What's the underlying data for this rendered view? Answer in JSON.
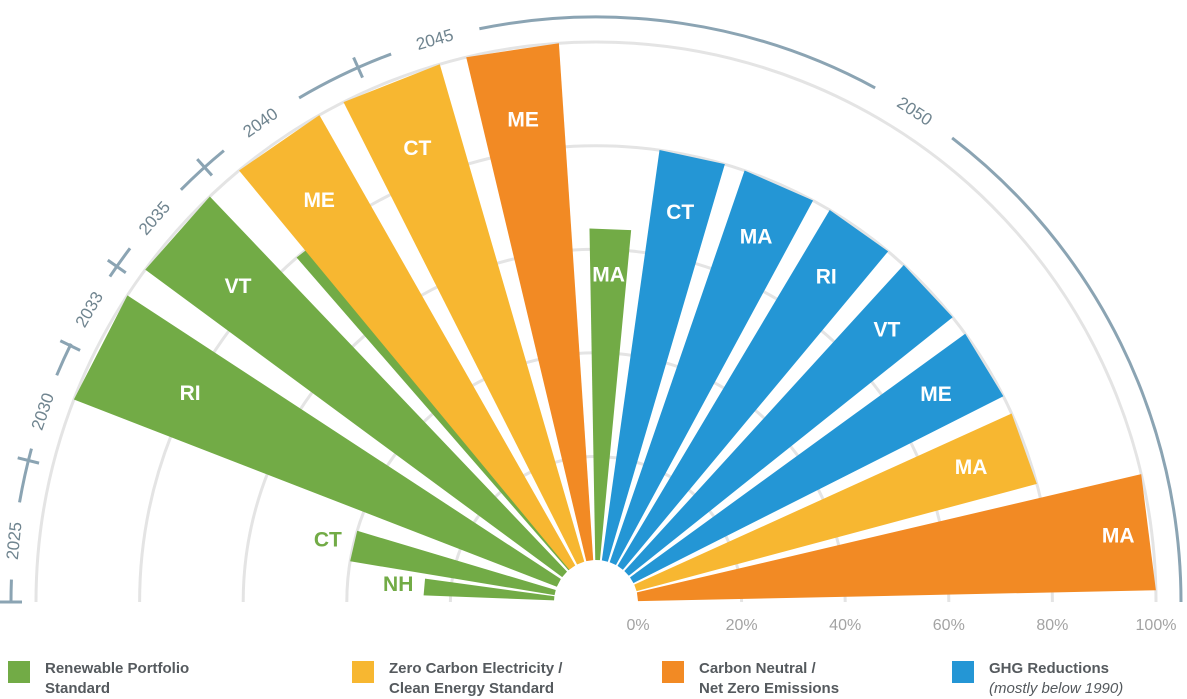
{
  "chart_data": {
    "type": "radial-bar",
    "title": "",
    "radial_axis": {
      "label_unit": "%",
      "ticks": [
        {
          "value": 0,
          "label": "0%"
        },
        {
          "value": 20,
          "label": "20%"
        },
        {
          "value": 40,
          "label": "40%"
        },
        {
          "value": 60,
          "label": "60%"
        },
        {
          "value": 80,
          "label": "80%"
        },
        {
          "value": 100,
          "label": "100%"
        }
      ]
    },
    "timeline": [
      {
        "year": 2025,
        "label": "2025"
      },
      {
        "year": 2030,
        "label": "2030"
      },
      {
        "year": 2033,
        "label": "2033"
      },
      {
        "year": 2035,
        "label": "2035"
      },
      {
        "year": 2040,
        "label": "2040"
      },
      {
        "year": 2045,
        "label": "2045"
      },
      {
        "year": 2050,
        "label": "2050"
      }
    ],
    "categories": [
      {
        "key": "rps",
        "name": "Renewable Portfolio",
        "name2": "Standard",
        "color": "#72ab46"
      },
      {
        "key": "zce",
        "name": "Zero Carbon Electricity /",
        "name2": "Clean Energy Standard",
        "color": "#f7b731"
      },
      {
        "key": "cn",
        "name": "Carbon Neutral /",
        "name2": "Net Zero Emissions",
        "color": "#f28a24"
      },
      {
        "key": "ghg",
        "name": "GHG Reductions",
        "name2": "(mostly below 1990)",
        "color": "#2496d5"
      }
    ],
    "bars": [
      {
        "state": "NH",
        "category": "rps",
        "year": 2025,
        "value": 25.2
      },
      {
        "state": "CT",
        "category": "rps",
        "year": 2030,
        "value": 40
      },
      {
        "state": "RI",
        "category": "rps",
        "year": 2033,
        "value": 100
      },
      {
        "state": "VT",
        "category": "rps",
        "year": 2035,
        "value": 100
      },
      {
        "state": "ME",
        "category": "rps",
        "year": 2040,
        "value": 80
      },
      {
        "state": "ME",
        "category": "zce",
        "year": 2040,
        "value": 100
      },
      {
        "state": "CT",
        "category": "zce",
        "year": 2040,
        "value": 100
      },
      {
        "state": "ME",
        "category": "cn",
        "year": 2045,
        "value": 100
      },
      {
        "state": "MA",
        "category": "rps",
        "year": 2030,
        "value": 64
      },
      {
        "state": "CT",
        "category": "ghg",
        "year": 2050,
        "value": 80
      },
      {
        "state": "MA",
        "category": "ghg",
        "year": 2050,
        "value": 80
      },
      {
        "state": "RI",
        "category": "ghg",
        "year": 2050,
        "value": 80
      },
      {
        "state": "VT",
        "category": "ghg",
        "year": 2050,
        "value": 80
      },
      {
        "state": "ME",
        "category": "ghg",
        "year": 2050,
        "value": 80
      },
      {
        "state": "MA",
        "category": "zce",
        "year": 2050,
        "value": 80
      },
      {
        "state": "MA",
        "category": "cn",
        "year": 2050,
        "value": 100
      }
    ],
    "legend_position": "bottom"
  }
}
